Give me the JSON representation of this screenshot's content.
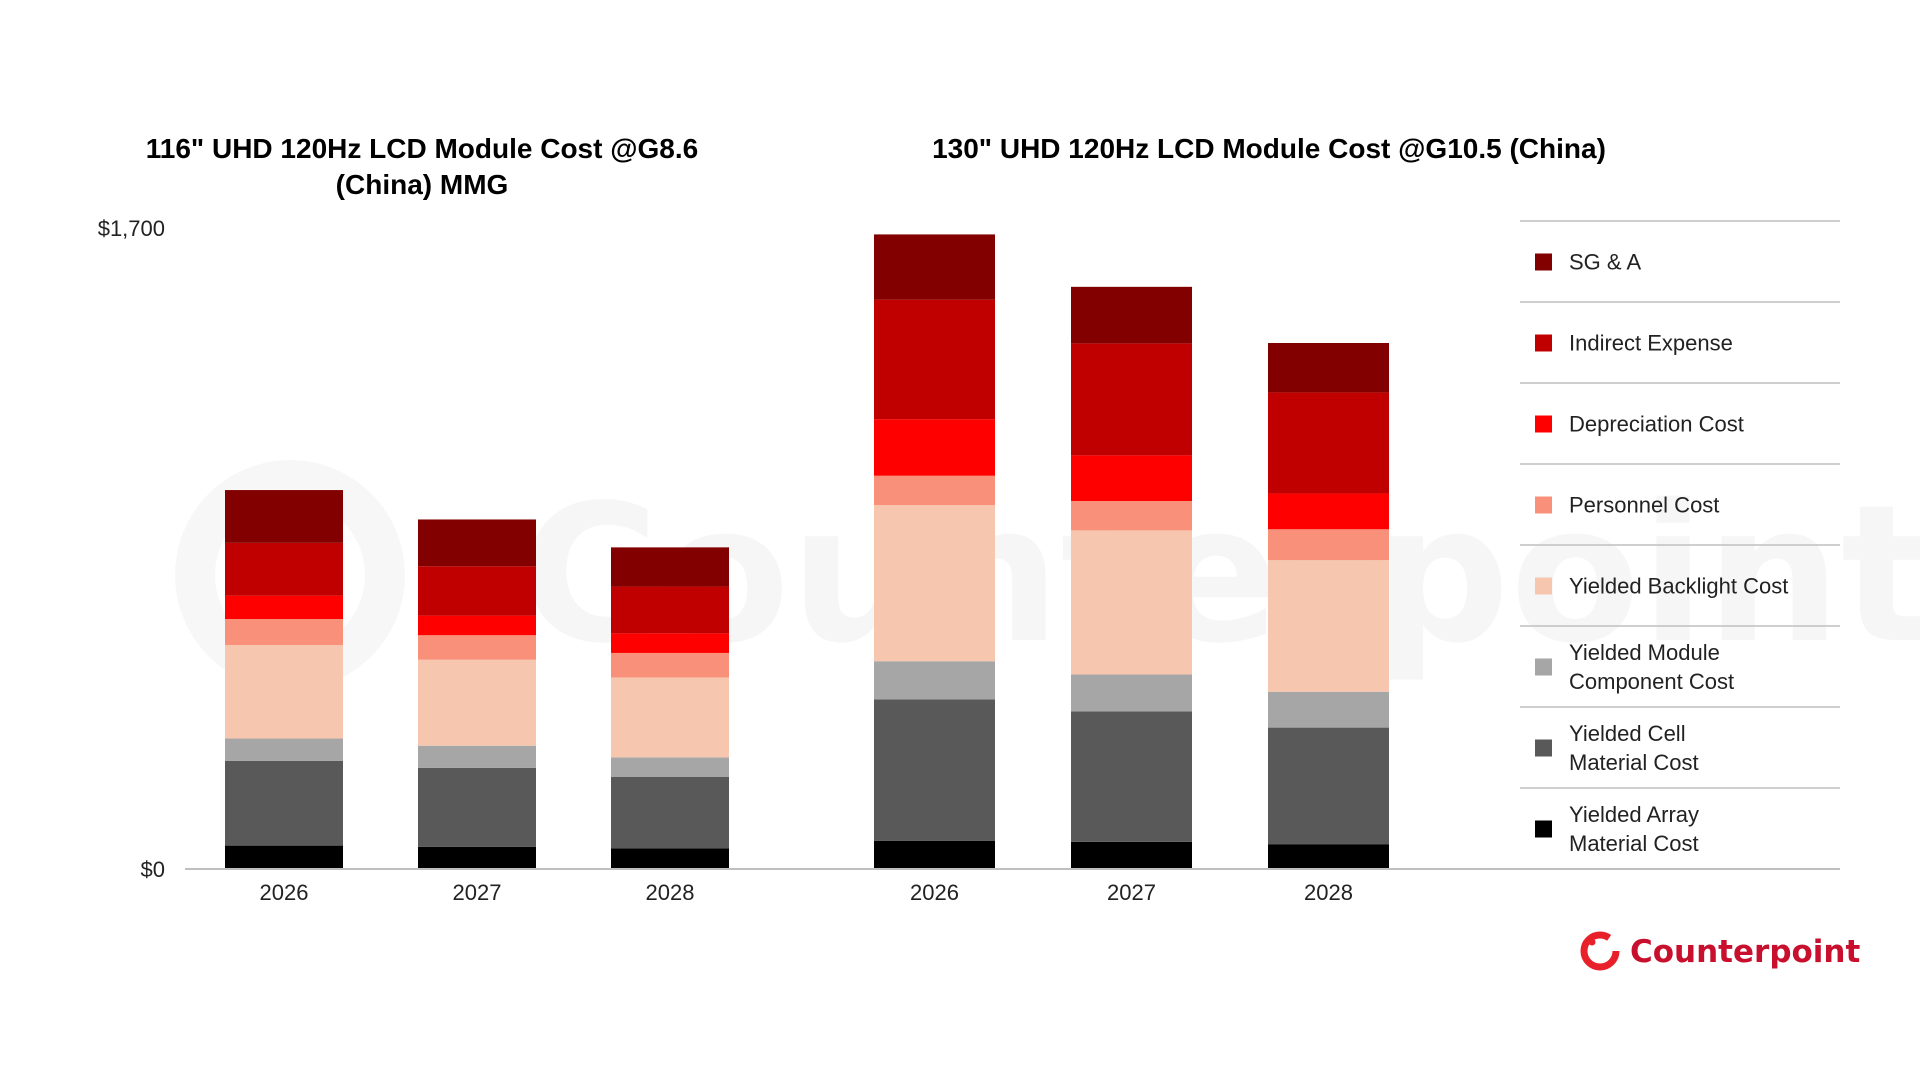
{
  "chart_data": [
    {
      "type": "bar",
      "stacked": true,
      "title_lines": [
        "116\" UHD 120Hz LCD Module Cost @G8.6",
        "(China) MMG"
      ],
      "categories": [
        "2026",
        "2027",
        "2028"
      ],
      "ylim": [
        0,
        1700
      ],
      "yticks": [
        "$0",
        "$1,700"
      ],
      "series": [
        {
          "name": "Yielded Array Material Cost",
          "color": "#000000",
          "values": [
            62,
            59,
            55
          ]
        },
        {
          "name": "Yielded Cell Material Cost",
          "color": "#595959",
          "values": [
            225,
            209,
            189
          ]
        },
        {
          "name": "Yielded Module Component Cost",
          "color": "#A6A6A6",
          "values": [
            59,
            59,
            52
          ]
        },
        {
          "name": "Yielded Backlight Cost",
          "color": "#F6C7AE",
          "values": [
            248,
            228,
            212
          ]
        },
        {
          "name": "Personnel Cost",
          "color": "#F8907A",
          "values": [
            69,
            65,
            65
          ]
        },
        {
          "name": "Depreciation Cost",
          "color": "#FF0000",
          "values": [
            62,
            52,
            52
          ]
        },
        {
          "name": "Indirect Expense",
          "color": "#C00000",
          "values": [
            140,
            131,
            124
          ]
        },
        {
          "name": "SG & A",
          "color": "#830000",
          "values": [
            140,
            124,
            104
          ]
        }
      ]
    },
    {
      "type": "bar",
      "stacked": true,
      "title_lines": [
        "130\" UHD 120Hz LCD Module Cost @G10.5 (China)"
      ],
      "categories": [
        "2026",
        "2027",
        "2028"
      ],
      "ylim": [
        0,
        1700
      ],
      "series": [
        {
          "name": "Yielded Array Material Cost",
          "color": "#000000",
          "values": [
            75,
            72,
            65
          ]
        },
        {
          "name": "Yielded Cell Material Cost",
          "color": "#595959",
          "values": [
            375,
            346,
            310
          ]
        },
        {
          "name": "Yielded Module Component Cost",
          "color": "#A6A6A6",
          "values": [
            101,
            98,
            95
          ]
        },
        {
          "name": "Yielded Backlight Cost",
          "color": "#F6C7AE",
          "values": [
            414,
            382,
            349
          ]
        },
        {
          "name": "Personnel Cost",
          "color": "#F8907A",
          "values": [
            78,
            78,
            82
          ]
        },
        {
          "name": "Depreciation Cost",
          "color": "#FF0000",
          "values": [
            150,
            121,
            95
          ]
        },
        {
          "name": "Indirect Expense",
          "color": "#C00000",
          "values": [
            317,
            297,
            268
          ]
        },
        {
          "name": "SG & A",
          "color": "#830000",
          "values": [
            173,
            150,
            131
          ]
        }
      ]
    }
  ],
  "legend": {
    "placement": "right",
    "items": [
      {
        "lines": [
          "SG & A"
        ],
        "color": "#830000"
      },
      {
        "lines": [
          "Indirect Expense"
        ],
        "color": "#C00000"
      },
      {
        "lines": [
          "Depreciation Cost"
        ],
        "color": "#FF0000"
      },
      {
        "lines": [
          "Personnel Cost"
        ],
        "color": "#F8907A"
      },
      {
        "lines": [
          "Yielded Backlight Cost"
        ],
        "color": "#F6C7AE"
      },
      {
        "lines": [
          "Yielded Module",
          "Component Cost"
        ],
        "color": "#A6A6A6"
      },
      {
        "lines": [
          "Yielded Cell",
          "Material Cost"
        ],
        "color": "#595959"
      },
      {
        "lines": [
          "Yielded Array",
          "Material Cost"
        ],
        "color": "#000000"
      }
    ]
  },
  "branding": {
    "logo_text": "Counterpoint",
    "watermark_text": "Counterpoint",
    "brand_color": "#C8102E"
  }
}
